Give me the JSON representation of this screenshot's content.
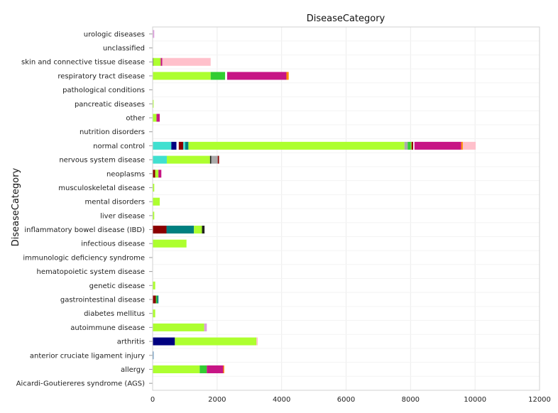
{
  "chart_data": {
    "type": "bar",
    "orientation": "horizontal",
    "stacked": true,
    "title": "DiseaseCategory",
    "xlabel": "",
    "ylabel": "DiseaseCategory",
    "xlim": [
      0,
      12000
    ],
    "xticks": [
      "0",
      "2000",
      "4000",
      "6000",
      "8000",
      "10000",
      "12000"
    ],
    "grid": true,
    "legend": "none",
    "categories": [
      "urologic diseases",
      "unclassified",
      "skin and connective tissue disease",
      "respiratory tract disease",
      "pathological conditions",
      "pancreatic diseases",
      "other",
      "nutrition disorders",
      "normal control",
      "nervous system disease",
      "neoplasms",
      "musculoskeletal disease",
      "mental disorders",
      "liver disease",
      "inflammatory bowel disease (IBD)",
      "infectious disease",
      "immunologic deficiency syndrome",
      "hematopoietic system disease",
      "genetic disease",
      "gastrointestinal disease",
      "diabetes mellitus",
      "autoimmune disease",
      "arthritis",
      "anterior cruciate ligament injury",
      "allergy",
      "Aicardi-Goutiereres syndrome (AGS)"
    ],
    "stacks": [
      [
        {
          "value": 50,
          "color": "#dda0dd"
        }
      ],
      [],
      [
        {
          "value": 20,
          "color": "#222222"
        },
        {
          "value": 230,
          "color": "#adff2f"
        },
        {
          "value": 50,
          "color": "#c71585"
        },
        {
          "value": 1500,
          "color": "#ffc0cb"
        }
      ],
      [
        {
          "value": 1800,
          "color": "#adff2f"
        },
        {
          "value": 450,
          "color": "#32cd32"
        },
        {
          "value": 60,
          "color": "#ffffff"
        },
        {
          "value": 1840,
          "color": "#c71585"
        },
        {
          "value": 70,
          "color": "#ff8c00"
        }
      ],
      [],
      [
        {
          "value": 30,
          "color": "#adff2f"
        }
      ],
      [
        {
          "value": 120,
          "color": "#adff2f"
        },
        {
          "value": 100,
          "color": "#c71585"
        }
      ],
      [],
      [
        {
          "value": 580,
          "color": "#40e0d0"
        },
        {
          "value": 160,
          "color": "#000080"
        },
        {
          "value": 70,
          "color": "#ffffff"
        },
        {
          "value": 140,
          "color": "#8b0000"
        },
        {
          "value": 60,
          "color": "#40e0d0"
        },
        {
          "value": 100,
          "color": "#008080"
        },
        {
          "value": 6700,
          "color": "#adff2f"
        },
        {
          "value": 100,
          "color": "#aaaaaa"
        },
        {
          "value": 100,
          "color": "#32cd32"
        },
        {
          "value": 20,
          "color": "#adff2f"
        },
        {
          "value": 50,
          "color": "#8b0000"
        },
        {
          "value": 40,
          "color": "#ffffff"
        },
        {
          "value": 1450,
          "color": "#c71585"
        },
        {
          "value": 50,
          "color": "#ff8c00"
        },
        {
          "value": 400,
          "color": "#ffc0cb"
        }
      ],
      [
        {
          "value": 440,
          "color": "#40e0d0"
        },
        {
          "value": 1340,
          "color": "#adff2f"
        },
        {
          "value": 40,
          "color": "#222222"
        },
        {
          "value": 200,
          "color": "#aaaaaa"
        },
        {
          "value": 40,
          "color": "#8b0000"
        }
      ],
      [
        {
          "value": 80,
          "color": "#8b0000"
        },
        {
          "value": 100,
          "color": "#adff2f"
        },
        {
          "value": 90,
          "color": "#c71585"
        }
      ],
      [
        {
          "value": 50,
          "color": "#adff2f"
        }
      ],
      [
        {
          "value": 220,
          "color": "#adff2f"
        }
      ],
      [
        {
          "value": 50,
          "color": "#adff2f"
        }
      ],
      [
        {
          "value": 430,
          "color": "#8b0000"
        },
        {
          "value": 850,
          "color": "#008080"
        },
        {
          "value": 250,
          "color": "#adff2f"
        },
        {
          "value": 80,
          "color": "#222222"
        }
      ],
      [
        {
          "value": 1050,
          "color": "#adff2f"
        }
      ],
      [],
      [],
      [
        {
          "value": 80,
          "color": "#adff2f"
        }
      ],
      [
        {
          "value": 100,
          "color": "#8b0000"
        },
        {
          "value": 40,
          "color": "#32cd32"
        },
        {
          "value": 40,
          "color": "#008080"
        }
      ],
      [
        {
          "value": 80,
          "color": "#adff2f"
        }
      ],
      [
        {
          "value": 1600,
          "color": "#adff2f"
        },
        {
          "value": 80,
          "color": "#dda0dd"
        }
      ],
      [
        {
          "value": 690,
          "color": "#000080"
        },
        {
          "value": 2530,
          "color": "#adff2f"
        },
        {
          "value": 40,
          "color": "#ffc0cb"
        }
      ],
      [
        {
          "value": 30,
          "color": "#4682b4"
        }
      ],
      [
        {
          "value": 1460,
          "color": "#adff2f"
        },
        {
          "value": 220,
          "color": "#32cd32"
        },
        {
          "value": 510,
          "color": "#c71585"
        },
        {
          "value": 30,
          "color": "#ff8c00"
        }
      ],
      []
    ]
  }
}
